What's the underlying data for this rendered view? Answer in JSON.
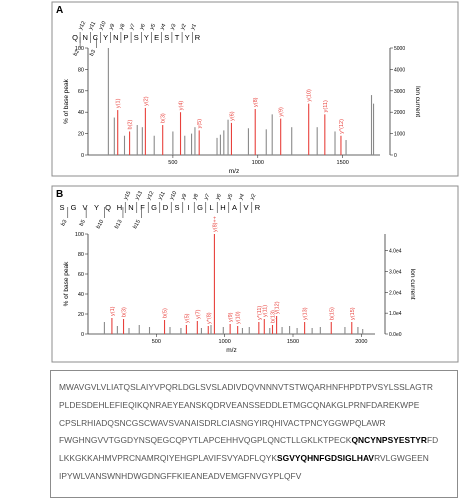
{
  "chart_data": [
    {
      "type": "bar",
      "panel_label": "A",
      "peptide": [
        "Q",
        "N",
        "C",
        "Y",
        "N",
        "P",
        "S",
        "Y",
        "E",
        "S",
        "T",
        "Y",
        "R"
      ],
      "y_ion_labels": [
        "y12",
        "y11",
        "y10",
        "y9",
        "y8",
        "y7",
        "y6",
        "y5",
        "y4",
        "y3",
        "y2",
        "y1"
      ],
      "b_ion_labels": [
        "b2",
        "b3"
      ],
      "xlabel": "m/z",
      "ylabel": "% of base peak",
      "ylabel_right": "Ion current",
      "xlim": [
        0,
        1720
      ],
      "ylim": [
        0,
        100
      ],
      "ylim_right": [
        0,
        5000
      ],
      "x_ticks": [
        "500",
        "1000",
        "1500"
      ],
      "x_tick_values": [
        500,
        1000,
        1500
      ],
      "y_ticks": [
        "0",
        "20",
        "40",
        "60",
        "80",
        "100"
      ],
      "y_tick_values": [
        0,
        20,
        40,
        60,
        80,
        100
      ],
      "y_ticks_right": [
        "0",
        "1000",
        "2000",
        "3000",
        "4000",
        "5000"
      ],
      "y_tick_values_right": [
        0,
        1000,
        2000,
        3000,
        4000,
        5000
      ],
      "colors": {
        "matched": "#e8413c",
        "unmatched": "#8a8a8a"
      },
      "peaks": [
        {
          "mz": 120,
          "value": 100,
          "kind": "unmatched"
        },
        {
          "mz": 155,
          "value": 35,
          "kind": "unmatched"
        },
        {
          "mz": 175,
          "value": 42,
          "kind": "matched",
          "label": "y(1)"
        },
        {
          "mz": 215,
          "value": 18,
          "kind": "unmatched"
        },
        {
          "mz": 245,
          "value": 22,
          "kind": "matched",
          "label": "b(2)"
        },
        {
          "mz": 290,
          "value": 28,
          "kind": "unmatched"
        },
        {
          "mz": 320,
          "value": 26,
          "kind": "unmatched"
        },
        {
          "mz": 338,
          "value": 44,
          "kind": "matched",
          "label": "y(2)"
        },
        {
          "mz": 390,
          "value": 18,
          "kind": "unmatched"
        },
        {
          "mz": 440,
          "value": 28,
          "kind": "matched",
          "label": "b(3)"
        },
        {
          "mz": 500,
          "value": 22,
          "kind": "unmatched"
        },
        {
          "mz": 545,
          "value": 40,
          "kind": "matched",
          "label": "y(4)"
        },
        {
          "mz": 570,
          "value": 18,
          "kind": "unmatched"
        },
        {
          "mz": 610,
          "value": 20,
          "kind": "unmatched"
        },
        {
          "mz": 630,
          "value": 26,
          "kind": "unmatched"
        },
        {
          "mz": 655,
          "value": 23,
          "kind": "matched",
          "label": "y(5)"
        },
        {
          "mz": 760,
          "value": 16,
          "kind": "unmatched"
        },
        {
          "mz": 780,
          "value": 19,
          "kind": "unmatched"
        },
        {
          "mz": 800,
          "value": 23,
          "kind": "unmatched"
        },
        {
          "mz": 825,
          "value": 33,
          "kind": "unmatched"
        },
        {
          "mz": 845,
          "value": 30,
          "kind": "matched",
          "label": "y(6)"
        },
        {
          "mz": 945,
          "value": 25,
          "kind": "unmatched"
        },
        {
          "mz": 985,
          "value": 43,
          "kind": "matched",
          "label": "y(8)"
        },
        {
          "mz": 1050,
          "value": 24,
          "kind": "unmatched"
        },
        {
          "mz": 1085,
          "value": 38,
          "kind": "unmatched"
        },
        {
          "mz": 1135,
          "value": 34,
          "kind": "matched",
          "label": "y(9)"
        },
        {
          "mz": 1200,
          "value": 26,
          "kind": "unmatched"
        },
        {
          "mz": 1300,
          "value": 48,
          "kind": "matched",
          "label": "y(10)"
        },
        {
          "mz": 1350,
          "value": 26,
          "kind": "unmatched"
        },
        {
          "mz": 1395,
          "value": 38,
          "kind": "matched",
          "label": "y(11)"
        },
        {
          "mz": 1455,
          "value": 22,
          "kind": "unmatched"
        },
        {
          "mz": 1490,
          "value": 18,
          "kind": "matched",
          "label": "y*(12)"
        },
        {
          "mz": 1520,
          "value": 14,
          "kind": "unmatched"
        },
        {
          "mz": 1670,
          "value": 56,
          "kind": "unmatched"
        },
        {
          "mz": 1682,
          "value": 48,
          "kind": "unmatched"
        }
      ]
    },
    {
      "type": "bar",
      "panel_label": "B",
      "peptide": [
        "S",
        "G",
        "V",
        "Y",
        "Q",
        "H",
        "N",
        "F",
        "G",
        "D",
        "S",
        "I",
        "G",
        "L",
        "H",
        "A",
        "V",
        "R"
      ],
      "y_ion_labels": [
        "y15",
        "y13",
        "y12",
        "y11",
        "y10",
        "y9",
        "y8",
        "y7",
        "y6",
        "y5",
        "y4",
        "y2"
      ],
      "b_ion_labels": [
        "b3",
        "b5",
        "b10",
        "b13",
        "b15"
      ],
      "xlabel": "m/z",
      "ylabel": "% of base peak",
      "ylabel_right": "Ion current",
      "xlim": [
        0,
        2100
      ],
      "ylim": [
        0,
        100
      ],
      "ylim_right": [
        0,
        48000
      ],
      "x_ticks": [
        "500",
        "1000",
        "1500",
        "2000"
      ],
      "x_tick_values": [
        500,
        1000,
        1500,
        2000
      ],
      "y_ticks": [
        "0",
        "20",
        "40",
        "60",
        "80",
        "100"
      ],
      "y_tick_values": [
        0,
        20,
        40,
        60,
        80,
        100
      ],
      "y_ticks_right": [
        "0.0e0",
        "1.0e4",
        "2.0e4",
        "3.0e4",
        "4.0e4"
      ],
      "y_tick_values_right": [
        0,
        10000,
        20000,
        30000,
        40000
      ],
      "colors": {
        "matched": "#e8413c",
        "unmatched": "#8a8a8a"
      },
      "peaks": [
        {
          "mz": 120,
          "value": 12,
          "kind": "unmatched"
        },
        {
          "mz": 175,
          "value": 16,
          "kind": "matched",
          "label": "y(1)"
        },
        {
          "mz": 215,
          "value": 8,
          "kind": "unmatched"
        },
        {
          "mz": 260,
          "value": 15,
          "kind": "matched",
          "label": "b(3)"
        },
        {
          "mz": 300,
          "value": 6,
          "kind": "unmatched"
        },
        {
          "mz": 375,
          "value": 9,
          "kind": "unmatched"
        },
        {
          "mz": 450,
          "value": 7,
          "kind": "unmatched"
        },
        {
          "mz": 560,
          "value": 14,
          "kind": "matched",
          "label": "b(5)"
        },
        {
          "mz": 600,
          "value": 7,
          "kind": "unmatched"
        },
        {
          "mz": 680,
          "value": 6,
          "kind": "unmatched"
        },
        {
          "mz": 720,
          "value": 9,
          "kind": "matched",
          "label": "y(5)"
        },
        {
          "mz": 800,
          "value": 13,
          "kind": "matched",
          "label": "y(7)"
        },
        {
          "mz": 830,
          "value": 6,
          "kind": "unmatched"
        },
        {
          "mz": 880,
          "value": 8,
          "kind": "matched",
          "label": "y*(8)"
        },
        {
          "mz": 900,
          "value": 9,
          "kind": "unmatched"
        },
        {
          "mz": 925,
          "value": 100,
          "kind": "matched",
          "label": "y(8)++"
        },
        {
          "mz": 990,
          "value": 7,
          "kind": "unmatched"
        },
        {
          "mz": 1040,
          "value": 10,
          "kind": "matched",
          "label": "y(9)"
        },
        {
          "mz": 1095,
          "value": 8,
          "kind": "matched",
          "label": "y(10)"
        },
        {
          "mz": 1130,
          "value": 6,
          "kind": "unmatched"
        },
        {
          "mz": 1180,
          "value": 7,
          "kind": "unmatched"
        },
        {
          "mz": 1250,
          "value": 12,
          "kind": "matched",
          "label": "y*(11)"
        },
        {
          "mz": 1290,
          "value": 15,
          "kind": "matched",
          "label": "y(11)"
        },
        {
          "mz": 1330,
          "value": 6,
          "kind": "unmatched"
        },
        {
          "mz": 1350,
          "value": 9,
          "kind": "matched",
          "label": "b(13)"
        },
        {
          "mz": 1380,
          "value": 18,
          "kind": "matched",
          "label": "y(12)"
        },
        {
          "mz": 1420,
          "value": 7,
          "kind": "unmatched"
        },
        {
          "mz": 1475,
          "value": 8,
          "kind": "unmatched"
        },
        {
          "mz": 1530,
          "value": 6,
          "kind": "unmatched"
        },
        {
          "mz": 1585,
          "value": 12,
          "kind": "matched",
          "label": "y(13)"
        },
        {
          "mz": 1640,
          "value": 6,
          "kind": "unmatched"
        },
        {
          "mz": 1700,
          "value": 7,
          "kind": "unmatched"
        },
        {
          "mz": 1780,
          "value": 12,
          "kind": "matched",
          "label": "b(15)"
        },
        {
          "mz": 1880,
          "value": 7,
          "kind": "unmatched"
        },
        {
          "mz": 1930,
          "value": 12,
          "kind": "matched",
          "label": "y(15)"
        },
        {
          "mz": 1975,
          "value": 7,
          "kind": "unmatched"
        },
        {
          "mz": 2010,
          "value": 5,
          "kind": "unmatched"
        }
      ]
    }
  ],
  "sequence": {
    "lines": [
      [
        {
          "text": "MWAVGVLVLIATQSLAIYVPQRLDGLSVSLADIVDQVNNNVTSTWQARHNFHPDTPVSYLSSLAGTR",
          "bold": false
        }
      ],
      [
        {
          "text": "PLDESDEHLEFIEQIKQNRAEYEANSKQDRVEANSSEDDLETMGCQNAKGLPRNFDAREKWPE",
          "bold": false
        }
      ],
      [
        {
          "text": "CPSLRHIADQSNCGSCWAVSVANAISDRLCIASNGYIRQHIVACTPNCYGGWPQLAWR",
          "bold": false
        }
      ],
      [
        {
          "text": "FWGHNGVVTGGDYNSQEGCQPYTLAPCEHHVQGPLQNCTLLGKLKTPECK",
          "bold": false
        },
        {
          "text": "QNCYNPSYESTYR",
          "bold": true
        },
        {
          "text": "FD",
          "bold": false
        }
      ],
      [
        {
          "text": "LKKGKKAHMVPRCNAMRQIYEHGPLAVIFSVYADFLQYK",
          "bold": false
        },
        {
          "text": "SGVYQHNFGDSIGLHAV",
          "bold": true
        },
        {
          "text": "RVLGWGEEN",
          "bold": false
        }
      ],
      [
        {
          "text": "IPYWLVANSWNHDWGDNGFFKIEANEADVEMGFNVGYPLQFV",
          "bold": false
        }
      ]
    ]
  }
}
